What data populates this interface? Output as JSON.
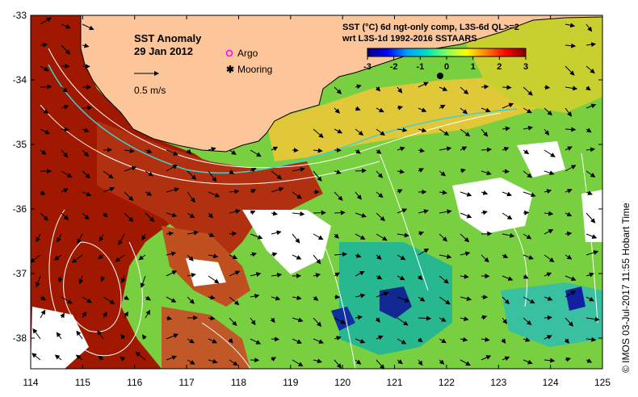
{
  "title": {
    "line1": "SST Anomaly",
    "line2": "29 Jan 2012"
  },
  "legend": {
    "argo_label": "Argo",
    "mooring_label": "Mooring",
    "vector_label": "0.5 m/s",
    "argo_color": "#ff00ff",
    "mooring_color": "#000000"
  },
  "product": {
    "line1": "SST (°C) 6d ngt-only comp, L3S-6d QL>=2",
    "line2": "wrt L3S-1d 1992-2016 SSTAARS"
  },
  "colorbar": {
    "ticks": [
      "-3",
      "-2",
      "-1",
      "0",
      "1",
      "2",
      "3"
    ],
    "stops": [
      "#00007f",
      "#0000ff",
      "#00a0ff",
      "#00e0c0",
      "#80ff60",
      "#ffff00",
      "#ff8000",
      "#ff0000",
      "#800000"
    ]
  },
  "axes": {
    "x_ticks": [
      "114",
      "115",
      "116",
      "117",
      "118",
      "119",
      "120",
      "121",
      "122",
      "123",
      "124",
      "125"
    ],
    "y_ticks": [
      "-33",
      "-34",
      "-35",
      "-36",
      "-37",
      "-38"
    ]
  },
  "credit": "©  IMOS 03-Jul-2017 11:55 Hobart Time",
  "colors": {
    "land": "#fcc59a",
    "coast": "#000000",
    "warm_dark": "#a01a00",
    "warm": "#c04a10",
    "mid": "#d89040",
    "yellow": "#e8d838",
    "green": "#78d840",
    "teal": "#20b890",
    "blue": "#102090",
    "contour": "#ffffff",
    "front": "#40d0d0"
  }
}
